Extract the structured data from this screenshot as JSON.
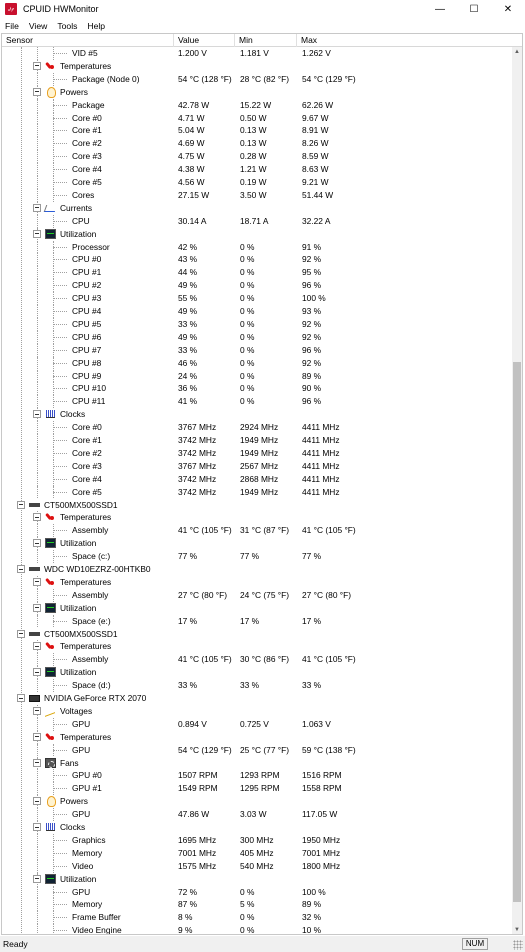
{
  "window": {
    "title": "CPUID HWMonitor",
    "minimize": "—",
    "maximize": "☐",
    "close": "✕"
  },
  "menu": [
    "File",
    "View",
    "Tools",
    "Help"
  ],
  "columns": [
    "Sensor",
    "Value",
    "Min",
    "Max"
  ],
  "status": {
    "text": "Ready",
    "num": "NUM"
  },
  "rows": [
    {
      "lvl": 3,
      "label": "VID #5",
      "value": "1.200 V",
      "min": "1.181 V",
      "max": "1.262 V"
    },
    {
      "lvl": 2,
      "label": "Temperatures",
      "icon": "temp-icon"
    },
    {
      "lvl": 3,
      "label": "Package (Node 0)",
      "value": "54 °C  (128 °F)",
      "min": "28 °C  (82 °F)",
      "max": "54 °C  (129 °F)"
    },
    {
      "lvl": 2,
      "label": "Powers",
      "icon": "power-icon"
    },
    {
      "lvl": 3,
      "label": "Package",
      "value": "42.78 W",
      "min": "15.22 W",
      "max": "62.26 W"
    },
    {
      "lvl": 3,
      "label": "Core #0",
      "value": "4.71 W",
      "min": "0.50 W",
      "max": "9.67 W"
    },
    {
      "lvl": 3,
      "label": "Core #1",
      "value": "5.04 W",
      "min": "0.13 W",
      "max": "8.91 W"
    },
    {
      "lvl": 3,
      "label": "Core #2",
      "value": "4.69 W",
      "min": "0.13 W",
      "max": "8.26 W"
    },
    {
      "lvl": 3,
      "label": "Core #3",
      "value": "4.75 W",
      "min": "0.28 W",
      "max": "8.59 W"
    },
    {
      "lvl": 3,
      "label": "Core #4",
      "value": "4.38 W",
      "min": "1.21 W",
      "max": "8.63 W"
    },
    {
      "lvl": 3,
      "label": "Core #5",
      "value": "4.56 W",
      "min": "0.19 W",
      "max": "9.21 W"
    },
    {
      "lvl": 3,
      "label": "Cores",
      "value": "27.15 W",
      "min": "3.50 W",
      "max": "51.44 W"
    },
    {
      "lvl": 2,
      "label": "Currents",
      "icon": "current-icon"
    },
    {
      "lvl": 3,
      "label": "CPU",
      "value": "30.14 A",
      "min": "18.71 A",
      "max": "32.22 A"
    },
    {
      "lvl": 2,
      "label": "Utilization",
      "icon": "utilization-icon"
    },
    {
      "lvl": 3,
      "label": "Processor",
      "value": "42 %",
      "min": "0 %",
      "max": "91 %"
    },
    {
      "lvl": 3,
      "label": "CPU #0",
      "value": "43 %",
      "min": "0 %",
      "max": "92 %"
    },
    {
      "lvl": 3,
      "label": "CPU #1",
      "value": "44 %",
      "min": "0 %",
      "max": "95 %"
    },
    {
      "lvl": 3,
      "label": "CPU #2",
      "value": "49 %",
      "min": "0 %",
      "max": "96 %"
    },
    {
      "lvl": 3,
      "label": "CPU #3",
      "value": "55 %",
      "min": "0 %",
      "max": "100 %"
    },
    {
      "lvl": 3,
      "label": "CPU #4",
      "value": "49 %",
      "min": "0 %",
      "max": "93 %"
    },
    {
      "lvl": 3,
      "label": "CPU #5",
      "value": "33 %",
      "min": "0 %",
      "max": "92 %"
    },
    {
      "lvl": 3,
      "label": "CPU #6",
      "value": "49 %",
      "min": "0 %",
      "max": "92 %"
    },
    {
      "lvl": 3,
      "label": "CPU #7",
      "value": "33 %",
      "min": "0 %",
      "max": "96 %"
    },
    {
      "lvl": 3,
      "label": "CPU #8",
      "value": "46 %",
      "min": "0 %",
      "max": "92 %"
    },
    {
      "lvl": 3,
      "label": "CPU #9",
      "value": "24 %",
      "min": "0 %",
      "max": "89 %"
    },
    {
      "lvl": 3,
      "label": "CPU #10",
      "value": "36 %",
      "min": "0 %",
      "max": "90 %"
    },
    {
      "lvl": 3,
      "label": "CPU #11",
      "value": "41 %",
      "min": "0 %",
      "max": "96 %"
    },
    {
      "lvl": 2,
      "label": "Clocks",
      "icon": "clock-icon"
    },
    {
      "lvl": 3,
      "label": "Core #0",
      "value": "3767 MHz",
      "min": "2924 MHz",
      "max": "4411 MHz"
    },
    {
      "lvl": 3,
      "label": "Core #1",
      "value": "3742 MHz",
      "min": "1949 MHz",
      "max": "4411 MHz"
    },
    {
      "lvl": 3,
      "label": "Core #2",
      "value": "3742 MHz",
      "min": "1949 MHz",
      "max": "4411 MHz"
    },
    {
      "lvl": 3,
      "label": "Core #3",
      "value": "3767 MHz",
      "min": "2567 MHz",
      "max": "4411 MHz"
    },
    {
      "lvl": 3,
      "label": "Core #4",
      "value": "3742 MHz",
      "min": "2868 MHz",
      "max": "4411 MHz"
    },
    {
      "lvl": 3,
      "label": "Core #5",
      "value": "3742 MHz",
      "min": "1949 MHz",
      "max": "4411 MHz"
    },
    {
      "lvl": 1,
      "label": "CT500MX500SSD1",
      "icon": "drive-icon"
    },
    {
      "lvl": 2,
      "label": "Temperatures",
      "icon": "temp-icon"
    },
    {
      "lvl": 3,
      "label": "Assembly",
      "value": "41 °C  (105 °F)",
      "min": "31 °C  (87 °F)",
      "max": "41 °C  (105 °F)"
    },
    {
      "lvl": 2,
      "label": "Utilization",
      "icon": "utilization-icon"
    },
    {
      "lvl": 3,
      "label": "Space (c:)",
      "value": "77 %",
      "min": "77 %",
      "max": "77 %"
    },
    {
      "lvl": 1,
      "label": "WDC WD10EZRZ-00HTKB0",
      "icon": "drive-icon"
    },
    {
      "lvl": 2,
      "label": "Temperatures",
      "icon": "temp-icon"
    },
    {
      "lvl": 3,
      "label": "Assembly",
      "value": "27 °C  (80 °F)",
      "min": "24 °C  (75 °F)",
      "max": "27 °C  (80 °F)"
    },
    {
      "lvl": 2,
      "label": "Utilization",
      "icon": "utilization-icon"
    },
    {
      "lvl": 3,
      "label": "Space (e:)",
      "value": "17 %",
      "min": "17 %",
      "max": "17 %"
    },
    {
      "lvl": 1,
      "label": "CT500MX500SSD1",
      "icon": "drive-icon"
    },
    {
      "lvl": 2,
      "label": "Temperatures",
      "icon": "temp-icon"
    },
    {
      "lvl": 3,
      "label": "Assembly",
      "value": "41 °C  (105 °F)",
      "min": "30 °C  (86 °F)",
      "max": "41 °C  (105 °F)"
    },
    {
      "lvl": 2,
      "label": "Utilization",
      "icon": "utilization-icon"
    },
    {
      "lvl": 3,
      "label": "Space (d:)",
      "value": "33 %",
      "min": "33 %",
      "max": "33 %"
    },
    {
      "lvl": 1,
      "label": "NVIDIA GeForce RTX 2070",
      "icon": "gpu-icon"
    },
    {
      "lvl": 2,
      "label": "Voltages",
      "icon": "voltage-icon"
    },
    {
      "lvl": 3,
      "label": "GPU",
      "value": "0.894 V",
      "min": "0.725 V",
      "max": "1.063 V"
    },
    {
      "lvl": 2,
      "label": "Temperatures",
      "icon": "temp-icon"
    },
    {
      "lvl": 3,
      "label": "GPU",
      "value": "54 °C  (129 °F)",
      "min": "25 °C  (77 °F)",
      "max": "59 °C  (138 °F)"
    },
    {
      "lvl": 2,
      "label": "Fans",
      "icon": "fan-icon"
    },
    {
      "lvl": 3,
      "label": "GPU #0",
      "value": "1507 RPM",
      "min": "1293 RPM",
      "max": "1516 RPM"
    },
    {
      "lvl": 3,
      "label": "GPU #1",
      "value": "1549 RPM",
      "min": "1295 RPM",
      "max": "1558 RPM"
    },
    {
      "lvl": 2,
      "label": "Powers",
      "icon": "power-icon"
    },
    {
      "lvl": 3,
      "label": "GPU",
      "value": "47.86 W",
      "min": "3.03 W",
      "max": "117.05 W"
    },
    {
      "lvl": 2,
      "label": "Clocks",
      "icon": "clock-icon"
    },
    {
      "lvl": 3,
      "label": "Graphics",
      "value": "1695 MHz",
      "min": "300 MHz",
      "max": "1950 MHz"
    },
    {
      "lvl": 3,
      "label": "Memory",
      "value": "7001 MHz",
      "min": "405 MHz",
      "max": "7001 MHz"
    },
    {
      "lvl": 3,
      "label": "Video",
      "value": "1575 MHz",
      "min": "540 MHz",
      "max": "1800 MHz"
    },
    {
      "lvl": 2,
      "label": "Utilization",
      "icon": "utilization-icon"
    },
    {
      "lvl": 3,
      "label": "GPU",
      "value": "72 %",
      "min": "0 %",
      "max": "100 %"
    },
    {
      "lvl": 3,
      "label": "Memory",
      "value": "87 %",
      "min": "5 %",
      "max": "89 %"
    },
    {
      "lvl": 3,
      "label": "Frame Buffer",
      "value": "8 %",
      "min": "0 %",
      "max": "32 %"
    },
    {
      "lvl": 3,
      "label": "Video Engine",
      "value": "9 %",
      "min": "0 %",
      "max": "10 %"
    }
  ]
}
